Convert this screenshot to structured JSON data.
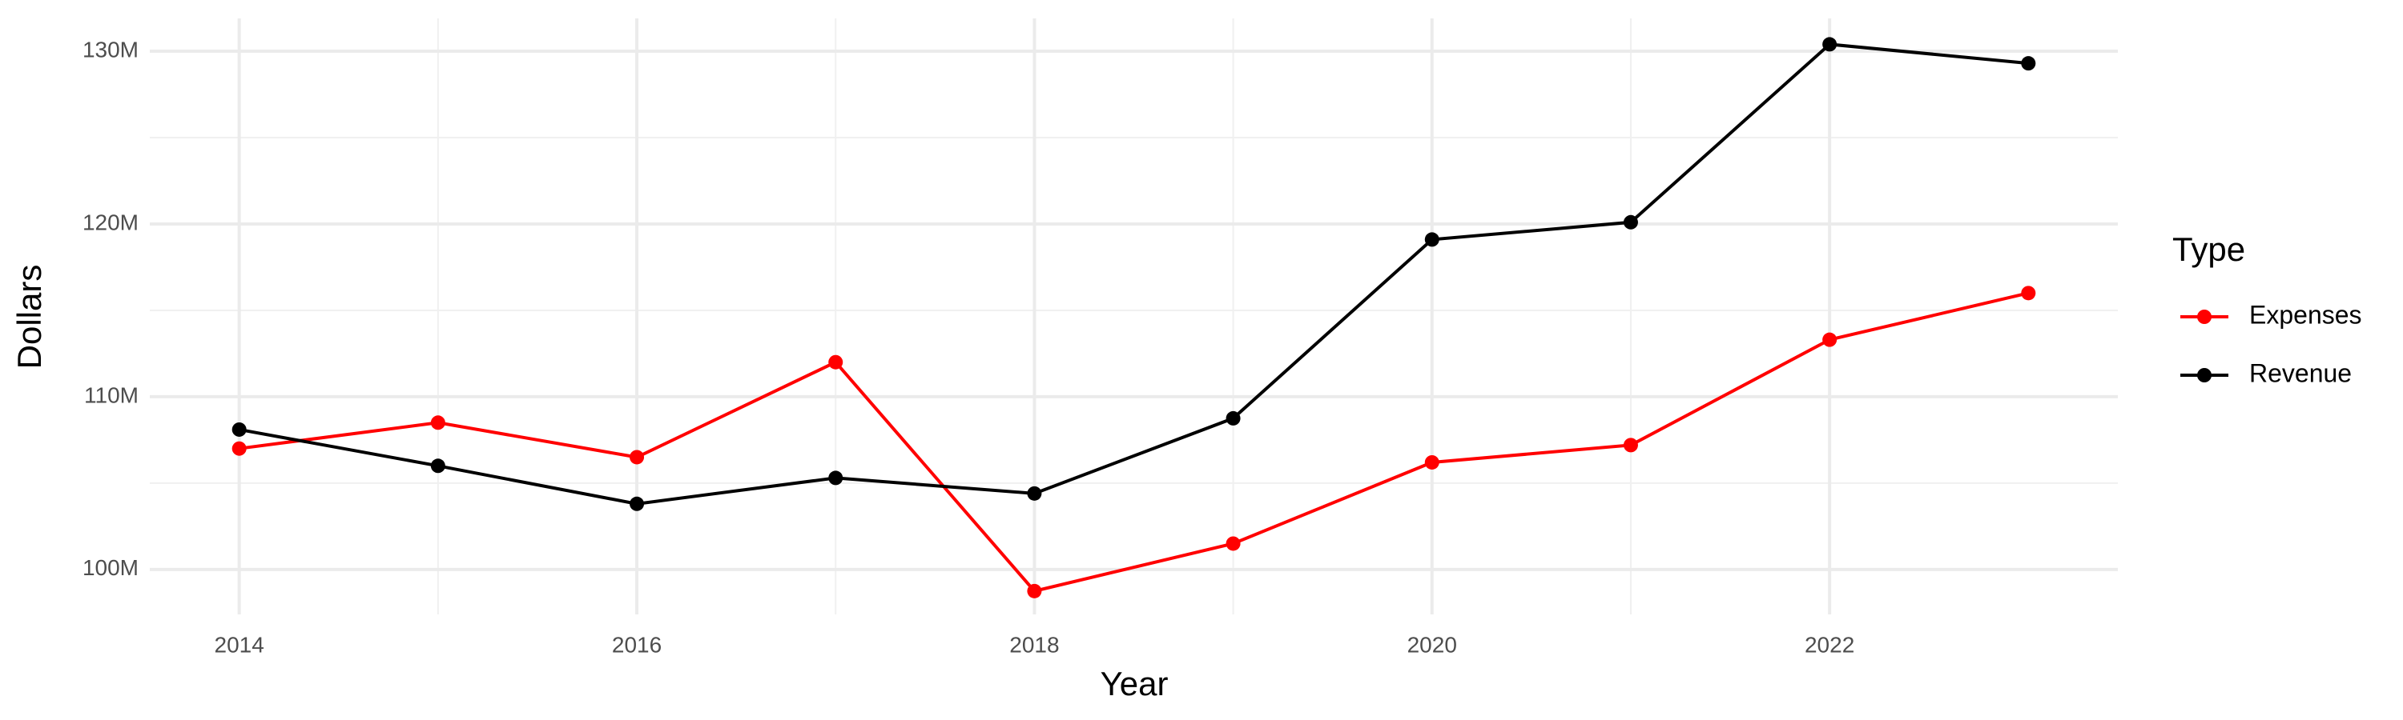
{
  "chart_data": {
    "type": "line",
    "x_label": "Year",
    "y_label": "Dollars",
    "legend_title": "Type",
    "x": [
      2014,
      2015,
      2016,
      2017,
      2018,
      2019,
      2020,
      2021,
      2022,
      2023
    ],
    "series": [
      {
        "name": "Expenses",
        "color": "#ff0000",
        "values": [
          107000000,
          108500000,
          106500000,
          112000000,
          98750000,
          101500000,
          106200000,
          107200000,
          113300000,
          116000000
        ]
      },
      {
        "name": "Revenue",
        "color": "#000000",
        "values": [
          108100000,
          106000000,
          103800000,
          105300000,
          104400000,
          108750000,
          119100000,
          120100000,
          130400000,
          129300000
        ]
      }
    ],
    "xlim": [
      2013.55,
      2023.45
    ],
    "xticks": [
      2014,
      2016,
      2018,
      2020,
      2022
    ],
    "ylim": [
      97400000,
      131900000
    ],
    "yticks": [
      {
        "value": 100000000,
        "label": "100M"
      },
      {
        "value": 110000000,
        "label": "110M"
      },
      {
        "value": 120000000,
        "label": "120M"
      },
      {
        "value": 130000000,
        "label": "130M"
      }
    ],
    "grid": true,
    "legend_position": "right"
  }
}
